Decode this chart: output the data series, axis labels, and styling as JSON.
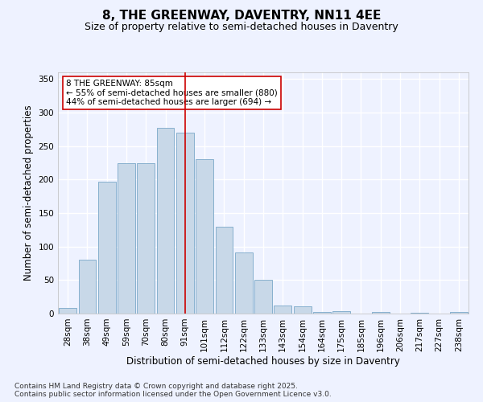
{
  "title_line1": "8, THE GREENWAY, DAVENTRY, NN11 4EE",
  "title_line2": "Size of property relative to semi-detached houses in Daventry",
  "xlabel": "Distribution of semi-detached houses by size in Daventry",
  "ylabel": "Number of semi-detached properties",
  "categories": [
    "28sqm",
    "38sqm",
    "49sqm",
    "59sqm",
    "70sqm",
    "80sqm",
    "91sqm",
    "101sqm",
    "112sqm",
    "122sqm",
    "133sqm",
    "143sqm",
    "154sqm",
    "164sqm",
    "175sqm",
    "185sqm",
    "196sqm",
    "206sqm",
    "217sqm",
    "227sqm",
    "238sqm"
  ],
  "values": [
    8,
    80,
    197,
    224,
    224,
    277,
    270,
    230,
    130,
    91,
    51,
    12,
    11,
    3,
    4,
    0,
    2,
    0,
    1,
    0,
    3
  ],
  "bar_color": "#c8d8e8",
  "bar_edge_color": "#7aa8c8",
  "property_bin_index": 6,
  "vline_color": "#cc0000",
  "annotation_text": "8 THE GREENWAY: 85sqm\n← 55% of semi-detached houses are smaller (880)\n44% of semi-detached houses are larger (694) →",
  "annotation_box_color": "#ffffff",
  "annotation_box_edge": "#cc0000",
  "ylim": [
    0,
    360
  ],
  "yticks": [
    0,
    50,
    100,
    150,
    200,
    250,
    300,
    350
  ],
  "footer_line1": "Contains HM Land Registry data © Crown copyright and database right 2025.",
  "footer_line2": "Contains public sector information licensed under the Open Government Licence v3.0.",
  "background_color": "#eef2ff",
  "grid_color": "#ffffff",
  "title_fontsize": 11,
  "subtitle_fontsize": 9,
  "axis_label_fontsize": 8.5,
  "tick_fontsize": 7.5,
  "annotation_fontsize": 7.5,
  "footer_fontsize": 6.5
}
